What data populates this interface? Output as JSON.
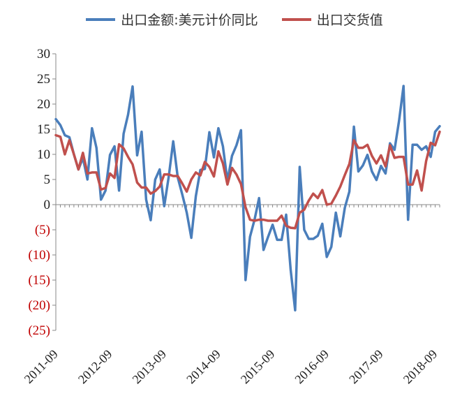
{
  "chart_data": {
    "type": "line",
    "title": "",
    "xlabel": "",
    "ylabel": "",
    "ylim": [
      -25,
      30
    ],
    "yticks": [
      30,
      25,
      20,
      15,
      10,
      5,
      0,
      -5,
      -10,
      -15,
      -20,
      -25
    ],
    "ytick_labels": [
      "30",
      "25",
      "20",
      "15",
      "10",
      "5",
      "0",
      "(5)",
      "(10)",
      "(15)",
      "(20)",
      "(25)"
    ],
    "xtick_labels": [
      "2011-09",
      "2012-09",
      "2013-09",
      "2014-09",
      "2015-09",
      "2016-09",
      "2017-09",
      "2018-09"
    ],
    "legend_position": "top",
    "negative_label_color": "#c00000",
    "series": [
      {
        "name": "出口金额:美元计价同比",
        "color": "#4a7ebb",
        "values": [
          17.0,
          15.8,
          13.8,
          13.4,
          10.0,
          7.0,
          9.3,
          5.0,
          15.2,
          11.3,
          1.0,
          2.8,
          9.9,
          11.6,
          2.8,
          14.1,
          17.9,
          23.5,
          9.8,
          14.5,
          1.0,
          -3.1,
          5.0,
          7.0,
          -0.3,
          5.6,
          12.6,
          5.4,
          2.0,
          -1.6,
          -6.6,
          1.7,
          6.9,
          7.1,
          14.4,
          9.4,
          15.2,
          11.6,
          4.7,
          9.7,
          11.8,
          14.8,
          -15.0,
          -6.4,
          -3.0,
          1.3,
          -9.0,
          -6.4,
          -4.0,
          -7.0,
          -7.0,
          -2.0,
          -13.0,
          -21.0,
          7.5,
          -5.0,
          -6.8,
          -6.8,
          -6.2,
          -3.8,
          -10.4,
          -8.4,
          -1.6,
          -6.3,
          -0.6,
          2.6,
          15.5,
          6.6,
          7.8,
          9.9,
          6.6,
          4.9,
          7.7,
          6.2,
          12.2,
          10.9,
          16.7,
          23.6,
          -3.0,
          11.9,
          11.9,
          10.9,
          11.6,
          9.5,
          14.5,
          15.6
        ]
      },
      {
        "name": "出口交货值",
        "color": "#c0504d",
        "values": [
          13.8,
          13.5,
          10.0,
          12.8,
          10.0,
          7.0,
          10.3,
          6.2,
          6.4,
          6.4,
          3.0,
          3.3,
          6.2,
          5.3,
          12.0,
          11.2,
          9.5,
          8.0,
          4.4,
          3.4,
          3.4,
          2.2,
          2.7,
          3.6,
          6.0,
          6.0,
          5.7,
          5.7,
          4.2,
          2.6,
          5.0,
          6.4,
          5.8,
          8.5,
          7.5,
          5.6,
          10.6,
          8.2,
          4.0,
          7.3,
          6.0,
          4.1,
          -0.5,
          -3.0,
          -3.2,
          -3.0,
          -3.0,
          -3.2,
          -3.2,
          -3.2,
          -2.2,
          -4.2,
          -4.6,
          -4.7,
          -1.6,
          -1.0,
          0.8,
          2.2,
          1.3,
          2.9,
          0.0,
          0.2,
          1.8,
          3.6,
          5.9,
          8.1,
          12.8,
          11.3,
          11.3,
          11.9,
          9.7,
          8.2,
          9.8,
          7.6,
          11.8,
          9.3,
          9.5,
          9.5,
          4.0,
          4.0,
          6.8,
          2.8,
          8.7,
          12.3,
          11.8,
          14.5
        ]
      }
    ]
  }
}
